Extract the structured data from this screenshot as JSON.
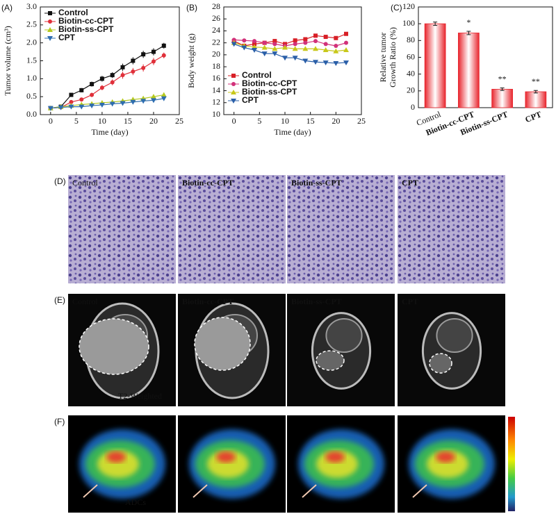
{
  "chart_data": [
    {
      "type": "line",
      "label": "(A)",
      "x_label": "Time (day)",
      "y_label": "Tumor volume (cm³)",
      "x": [
        0,
        2,
        4,
        6,
        8,
        10,
        12,
        14,
        16,
        18,
        20,
        22
      ],
      "xlim": [
        -2,
        25
      ],
      "xticks": [
        0,
        5,
        10,
        15,
        20,
        25
      ],
      "ylim": [
        0,
        3
      ],
      "yticks": [
        {
          "value": 0,
          "label": "0.0"
        },
        0.5,
        {
          "value": 1,
          "label": "1.0"
        },
        1.5,
        {
          "value": 2,
          "label": "2.0"
        },
        2.5,
        {
          "value": 3,
          "label": "3.0"
        }
      ],
      "legend": "upper left",
      "series": [
        {
          "name": "Control",
          "color": "#111111",
          "marker": "square",
          "values": [
            0.18,
            0.22,
            0.55,
            0.68,
            0.85,
            1.0,
            1.1,
            1.32,
            1.5,
            1.68,
            1.75,
            1.92
          ],
          "errors": [
            0.02,
            0.03,
            0.04,
            0.06,
            0.07,
            0.08,
            0.08,
            0.1,
            0.1,
            0.1,
            0.1,
            0.08
          ]
        },
        {
          "name": "Biotin-cc-CPT",
          "color": "#e0303a",
          "marker": "circle",
          "values": [
            0.18,
            0.2,
            0.35,
            0.42,
            0.55,
            0.75,
            0.9,
            1.1,
            1.2,
            1.3,
            1.48,
            1.65
          ],
          "errors": [
            0.02,
            0.03,
            0.04,
            0.05,
            0.06,
            0.07,
            0.08,
            0.1,
            0.1,
            0.1,
            0.1,
            0.08
          ]
        },
        {
          "name": "Biotin-ss-CPT",
          "color": "#b5c91e",
          "marker": "triangle",
          "values": [
            0.18,
            0.22,
            0.25,
            0.28,
            0.3,
            0.33,
            0.35,
            0.38,
            0.42,
            0.45,
            0.5,
            0.55
          ],
          "errors": [
            0.02,
            0.03,
            0.04,
            0.04,
            0.05,
            0.05,
            0.05,
            0.06,
            0.06,
            0.06,
            0.06,
            0.06
          ]
        },
        {
          "name": "CPT",
          "color": "#2e6db0",
          "marker": "triangle-down",
          "values": [
            0.18,
            0.2,
            0.22,
            0.22,
            0.25,
            0.27,
            0.3,
            0.32,
            0.35,
            0.38,
            0.4,
            0.45
          ],
          "errors": [
            0.02,
            0.03,
            0.05,
            0.05,
            0.05,
            0.05,
            0.05,
            0.05,
            0.05,
            0.05,
            0.05,
            0.05
          ]
        }
      ]
    },
    {
      "type": "line",
      "label": "(B)",
      "x_label": "Time (day)",
      "y_label": "Body weight (g)",
      "x": [
        0,
        2,
        4,
        6,
        8,
        10,
        12,
        14,
        16,
        18,
        20,
        22
      ],
      "xlim": [
        -2,
        25
      ],
      "xticks": [
        0,
        5,
        10,
        15,
        20,
        25
      ],
      "ylim": [
        10,
        28
      ],
      "yticks": [
        10,
        12,
        14,
        16,
        18,
        20,
        22,
        24,
        26,
        28
      ],
      "legend": "lower left",
      "series": [
        {
          "name": "Control",
          "color": "#d81f26",
          "marker": "square",
          "values": [
            22.3,
            21.5,
            21.8,
            22.0,
            22.3,
            21.8,
            22.4,
            22.6,
            23.2,
            23.0,
            22.8,
            23.5
          ]
        },
        {
          "name": "Biotin-cc-CPT",
          "color": "#d2317a",
          "marker": "circle",
          "values": [
            22.5,
            22.4,
            22.3,
            22.0,
            21.8,
            21.5,
            21.8,
            22.0,
            22.3,
            21.8,
            21.5,
            22.0
          ]
        },
        {
          "name": "Biotin-ss-CPT",
          "color": "#c8c81a",
          "marker": "triangle",
          "values": [
            22.0,
            21.5,
            21.3,
            21.2,
            21.0,
            21.2,
            21.0,
            21.0,
            21.0,
            20.8,
            20.6,
            20.8
          ]
        },
        {
          "name": "CPT",
          "color": "#2a5fa8",
          "marker": "triangle-down",
          "values": [
            21.8,
            21.2,
            20.8,
            20.2,
            20.2,
            19.5,
            19.5,
            19.0,
            18.8,
            18.7,
            18.6,
            18.7
          ]
        }
      ]
    },
    {
      "type": "bar",
      "label": "(C)",
      "y_label": [
        "Relative tumor",
        "Growth Ratio (%)"
      ],
      "categories": [
        "Control",
        "Biotin-cc-CPT",
        "Biotin-ss-CPT",
        "CPT"
      ],
      "values": [
        100,
        89,
        22,
        19
      ],
      "errors": [
        2,
        2,
        1.5,
        1.5
      ],
      "annotations": [
        null,
        "*",
        "**",
        "**"
      ],
      "color": "#e8262e",
      "ylim": [
        0,
        120
      ],
      "yticks": [
        0,
        20,
        40,
        60,
        80,
        100,
        120
      ]
    }
  ],
  "image_panels": [
    {
      "label": "(D)",
      "captions": [
        "Control",
        "Biotin-cc-CPT",
        "Biotin-ss-CPT",
        "CPT"
      ]
    },
    {
      "label": "(E)",
      "captions": [
        "Control",
        "Biotin-cc-CPT",
        "Biotin-ss-CPT",
        "CPT"
      ],
      "note": "T2-Weighted"
    },
    {
      "label": "(F)",
      "note": "ADCs"
    }
  ]
}
